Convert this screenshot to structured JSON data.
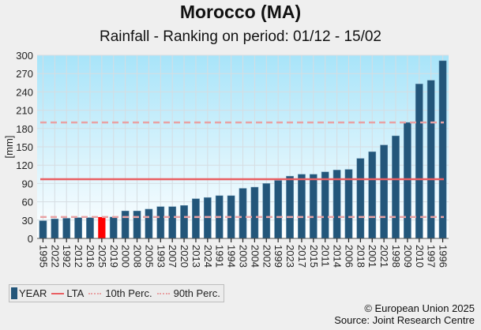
{
  "header": {
    "title": "Morocco (MA)",
    "subtitle": "Rainfall - Ranking on period: 01/12 - 15/02"
  },
  "legend": {
    "items": [
      {
        "label": "YEAR",
        "kind": "bar"
      },
      {
        "label": "LTA",
        "kind": "line"
      },
      {
        "label": "10th Perc.",
        "kind": "dotted"
      },
      {
        "label": "90th Perc.",
        "kind": "dotted"
      }
    ]
  },
  "footer": {
    "copyright": "© European Union 2025",
    "source": "Source: Joint Research Centre"
  },
  "colors": {
    "bar": "#23567a",
    "highlight_bar": "#ff0000",
    "lta": "#e95f63",
    "percentile": "#e8a2a4",
    "bg_top": "#a8e4f9",
    "bg_bottom": "#ffffff"
  },
  "chart_data": {
    "type": "bar",
    "title": "Morocco (MA)",
    "subtitle": "Rainfall - Ranking on period: 01/12 - 15/02",
    "xlabel": "",
    "ylabel": "[mm]",
    "ylim": [
      0,
      300
    ],
    "yticks": [
      0,
      30,
      60,
      90,
      120,
      150,
      180,
      210,
      240,
      270,
      300
    ],
    "grid": true,
    "legend_position": "bottom-left",
    "highlight_category": "2025",
    "categories": [
      "1995",
      "2022",
      "1992",
      "2012",
      "2016",
      "2025",
      "2019",
      "2000",
      "2008",
      "2005",
      "1993",
      "2007",
      "2020",
      "2013",
      "2024",
      "1991",
      "1994",
      "2003",
      "2004",
      "2002",
      "1999",
      "2023",
      "2017",
      "2015",
      "2011",
      "2014",
      "2006",
      "2018",
      "2001",
      "2021",
      "1998",
      "2009",
      "2010",
      "1997",
      "1996"
    ],
    "series": [
      {
        "name": "YEAR",
        "values": [
          29,
          32,
          33,
          34,
          34,
          35,
          35,
          45,
          45,
          48,
          52,
          52,
          54,
          65,
          67,
          70,
          70,
          82,
          84,
          90,
          95,
          102,
          105,
          105,
          109,
          112,
          113,
          131,
          142,
          153,
          168,
          190,
          253,
          259,
          291
        ]
      }
    ],
    "reference_lines": [
      {
        "name": "LTA",
        "value": 97,
        "style": "solid"
      },
      {
        "name": "10th Perc.",
        "value": 35,
        "style": "dashed"
      },
      {
        "name": "90th Perc.",
        "value": 190,
        "style": "dashed"
      }
    ]
  }
}
